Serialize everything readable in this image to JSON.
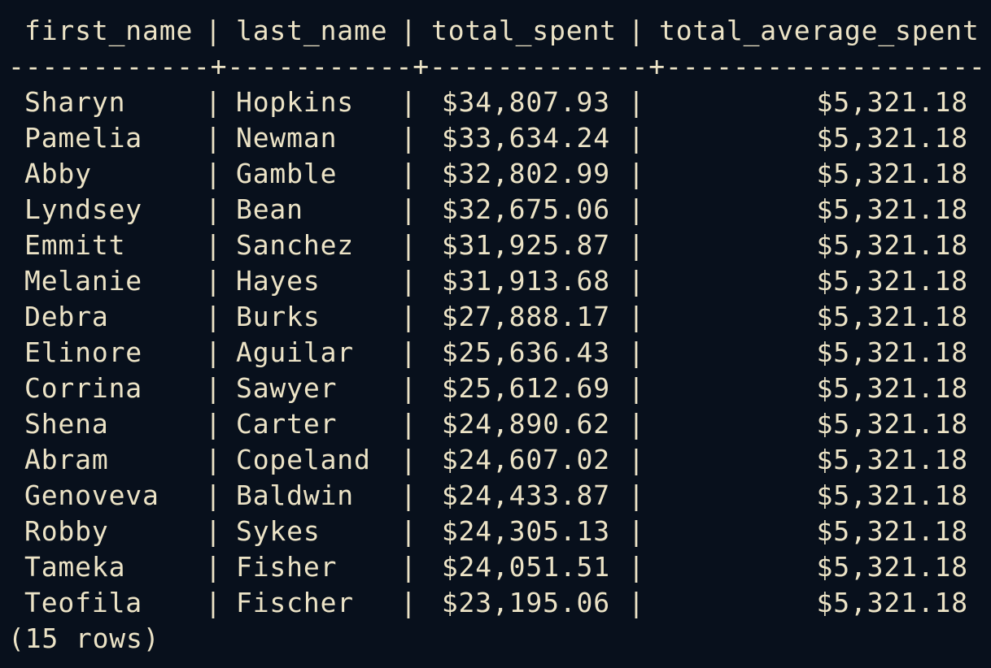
{
  "table": {
    "separator": "|",
    "divider": "------------+-----------+-------------+---------------------",
    "columns": [
      "first_name",
      "last_name",
      "total_spent",
      "total_average_spent"
    ],
    "rows": [
      {
        "first_name": "Sharyn",
        "last_name": "Hopkins",
        "total_spent": "$34,807.93",
        "total_average_spent": "$5,321.18"
      },
      {
        "first_name": "Pamelia",
        "last_name": "Newman",
        "total_spent": "$33,634.24",
        "total_average_spent": "$5,321.18"
      },
      {
        "first_name": "Abby",
        "last_name": "Gamble",
        "total_spent": "$32,802.99",
        "total_average_spent": "$5,321.18"
      },
      {
        "first_name": "Lyndsey",
        "last_name": "Bean",
        "total_spent": "$32,675.06",
        "total_average_spent": "$5,321.18"
      },
      {
        "first_name": "Emmitt",
        "last_name": "Sanchez",
        "total_spent": "$31,925.87",
        "total_average_spent": "$5,321.18"
      },
      {
        "first_name": "Melanie",
        "last_name": "Hayes",
        "total_spent": "$31,913.68",
        "total_average_spent": "$5,321.18"
      },
      {
        "first_name": "Debra",
        "last_name": "Burks",
        "total_spent": "$27,888.17",
        "total_average_spent": "$5,321.18"
      },
      {
        "first_name": "Elinore",
        "last_name": "Aguilar",
        "total_spent": "$25,636.43",
        "total_average_spent": "$5,321.18"
      },
      {
        "first_name": "Corrina",
        "last_name": "Sawyer",
        "total_spent": "$25,612.69",
        "total_average_spent": "$5,321.18"
      },
      {
        "first_name": "Shena",
        "last_name": "Carter",
        "total_spent": "$24,890.62",
        "total_average_spent": "$5,321.18"
      },
      {
        "first_name": "Abram",
        "last_name": "Copeland",
        "total_spent": "$24,607.02",
        "total_average_spent": "$5,321.18"
      },
      {
        "first_name": "Genoveva",
        "last_name": "Baldwin",
        "total_spent": "$24,433.87",
        "total_average_spent": "$5,321.18"
      },
      {
        "first_name": "Robby",
        "last_name": "Sykes",
        "total_spent": "$24,305.13",
        "total_average_spent": "$5,321.18"
      },
      {
        "first_name": "Tameka",
        "last_name": "Fisher",
        "total_spent": "$24,051.51",
        "total_average_spent": "$5,321.18"
      },
      {
        "first_name": "Teofila",
        "last_name": "Fischer",
        "total_spent": "$23,195.06",
        "total_average_spent": "$5,321.18"
      }
    ],
    "footer": "(15 rows)"
  }
}
